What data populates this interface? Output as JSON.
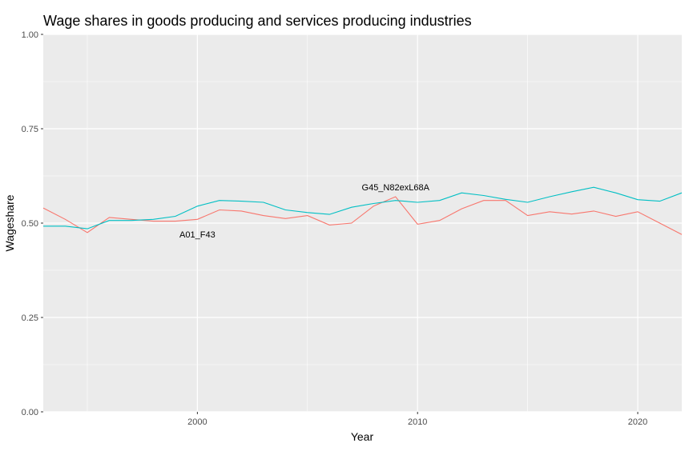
{
  "chart_data": {
    "type": "line",
    "title": "Wage shares in goods producing and services producing industries",
    "xlabel": "Year",
    "ylabel": "Wageshare",
    "xlim": [
      1993,
      2022
    ],
    "ylim": [
      0,
      1
    ],
    "x_ticks": [
      2000,
      2010,
      2020
    ],
    "y_ticks": [
      "0.00",
      "0.25",
      "0.50",
      "0.75",
      "1.00"
    ],
    "grid": true,
    "legend": "none",
    "x": [
      1993,
      1994,
      1995,
      1996,
      1997,
      1998,
      1999,
      2000,
      2001,
      2002,
      2003,
      2004,
      2005,
      2006,
      2007,
      2008,
      2009,
      2010,
      2011,
      2012,
      2013,
      2014,
      2015,
      2016,
      2017,
      2018,
      2019,
      2020,
      2021,
      2022
    ],
    "series": [
      {
        "name": "A01_F43",
        "color": "#F8766D",
        "values": [
          0.54,
          0.51,
          0.475,
          0.515,
          0.51,
          0.505,
          0.505,
          0.51,
          0.535,
          0.532,
          0.52,
          0.512,
          0.52,
          0.495,
          0.5,
          0.545,
          0.57,
          0.497,
          0.507,
          0.538,
          0.56,
          0.56,
          0.52,
          0.53,
          0.524,
          0.532,
          0.518,
          0.53,
          0.5,
          0.47
        ]
      },
      {
        "name": "G45_N82exL68A",
        "color": "#00BFC4",
        "values": [
          0.492,
          0.492,
          0.485,
          0.507,
          0.507,
          0.51,
          0.518,
          0.545,
          0.56,
          0.558,
          0.555,
          0.535,
          0.528,
          0.523,
          0.542,
          0.552,
          0.56,
          0.555,
          0.56,
          0.58,
          0.573,
          0.563,
          0.555,
          0.57,
          0.583,
          0.595,
          0.58,
          0.562,
          0.558,
          0.58
        ]
      }
    ],
    "annotations": [
      {
        "text": "A01_F43",
        "x": 2000,
        "y": 0.47
      },
      {
        "text": "G45_N82exL68A",
        "x": 2009,
        "y": 0.595
      }
    ]
  }
}
